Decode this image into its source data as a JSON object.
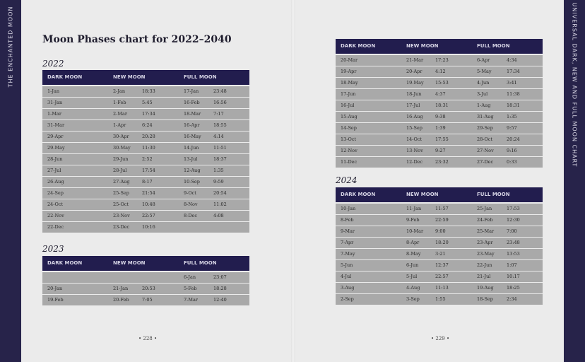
{
  "spine_left": "THE ENCHANTED MOON",
  "spine_right": "UNIVERSAL DARK, NEW AND FULL MOON CHART",
  "title": "Moon Phases chart for 2022–2040",
  "tables": [
    {
      "year": "2022",
      "headers": [
        "DARK MOON",
        "NEW MOON",
        "FULL MOON"
      ],
      "rows": [
        [
          "1-Jan",
          "2-Jan",
          "18:33",
          "17-Jan",
          "23:48"
        ],
        [
          "31-Jan",
          "1-Feb",
          "5:45",
          "16-Feb",
          "16:56"
        ],
        [
          "1-Mar",
          "2-Mar",
          "17:34",
          "18-Mar",
          "7:17"
        ],
        [
          "31-Mar",
          "1-Apr",
          "6:24",
          "16-Apr",
          "18:55"
        ],
        [
          "29-Apr",
          "30-Apr",
          "20:28",
          "16-May",
          "4:14"
        ],
        [
          "29-May",
          "30-May",
          "11:30",
          "14-Jun",
          "11:51"
        ],
        [
          "28-Jun",
          "29-Jun",
          "2:52",
          "13-Jul",
          "18:37"
        ],
        [
          "27-Jul",
          "28-Jul",
          "17:54",
          "12-Aug",
          "1:35"
        ],
        [
          "26-Aug",
          "27-Aug",
          "8:17",
          "10-Sep",
          "9:59"
        ],
        [
          "24-Sep",
          "25-Sep",
          "21:54",
          "9-Oct",
          "20:54"
        ],
        [
          "24-Oct",
          "25-Oct",
          "10:48",
          "8-Nov",
          "11:02"
        ],
        [
          "22-Nov",
          "23-Nov",
          "22:57",
          "8-Dec",
          "4:08"
        ],
        [
          "22-Dec",
          "23-Dec",
          "10:16",
          null,
          null
        ]
      ]
    },
    {
      "year": "2023",
      "headers": [
        "DARK MOON",
        "NEW MOON",
        "FULL MOON"
      ],
      "rows": [
        [
          null,
          null,
          null,
          "6-Jan",
          "23:07"
        ],
        [
          "20-Jan",
          "21-Jan",
          "20:53",
          "5-Feb",
          "18:28"
        ],
        [
          "19-Feb",
          "20-Feb",
          "7:05",
          "7-Mar",
          "12:40"
        ]
      ]
    },
    {
      "headers": [
        "DARK MOON",
        "NEW MOON",
        "FULL MOON"
      ],
      "rows": [
        [
          "20-Mar",
          "21-Mar",
          "17:23",
          "6-Apr",
          "4:34"
        ],
        [
          "19-Apr",
          "20-Apr",
          "4:12",
          "5-May",
          "17:34"
        ],
        [
          "18-May",
          "19-May",
          "15:53",
          "4-Jun",
          "3:41"
        ],
        [
          "17-Jun",
          "18-Jun",
          "4:37",
          "3-Jul",
          "11:38"
        ],
        [
          "16-Jul",
          "17-Jul",
          "18:31",
          "1-Aug",
          "18:31"
        ],
        [
          "15-Aug",
          "16-Aug",
          "9:38",
          "31-Aug",
          "1:35"
        ],
        [
          "14-Sep",
          "15-Sep",
          "1:39",
          "29-Sep",
          "9:57"
        ],
        [
          "13-Oct",
          "14-Oct",
          "17:55",
          "28-Oct",
          "20:24"
        ],
        [
          "12-Nov",
          "13-Nov",
          "9:27",
          "27-Nov",
          "9:16"
        ],
        [
          "11-Dec",
          "12-Dec",
          "23:32",
          "27-Dec",
          "0:33"
        ]
      ]
    },
    {
      "year": "2024",
      "headers": [
        "DARK MOON",
        "NEW MOON",
        "FULL MOON"
      ],
      "rows": [
        [
          "10-Jan",
          "11-Jan",
          "11:57",
          "25-Jan",
          "17:53"
        ],
        [
          "8-Feb",
          "9-Feb",
          "22:59",
          "24-Feb",
          "12:30"
        ],
        [
          "9-Mar",
          "10-Mar",
          "9:00",
          "25-Mar",
          "7:00"
        ],
        [
          "7-Apr",
          "8-Apr",
          "18:20",
          "23-Apr",
          "23:48"
        ],
        [
          "7-May",
          "8-May",
          "3:21",
          "23-May",
          "13:53"
        ],
        [
          "5-Jun",
          "6-Jun",
          "12:37",
          "22-Jun",
          "1:07"
        ],
        [
          "4-Jul",
          "5-Jul",
          "22:57",
          "21-Jul",
          "10:17"
        ],
        [
          "3-Aug",
          "4-Aug",
          "11:13",
          "19-Aug",
          "18:25"
        ],
        [
          "2-Sep",
          "3-Sep",
          "1:55",
          "18-Sep",
          "2:34"
        ]
      ]
    }
  ],
  "pages": [
    "228",
    "229"
  ]
}
